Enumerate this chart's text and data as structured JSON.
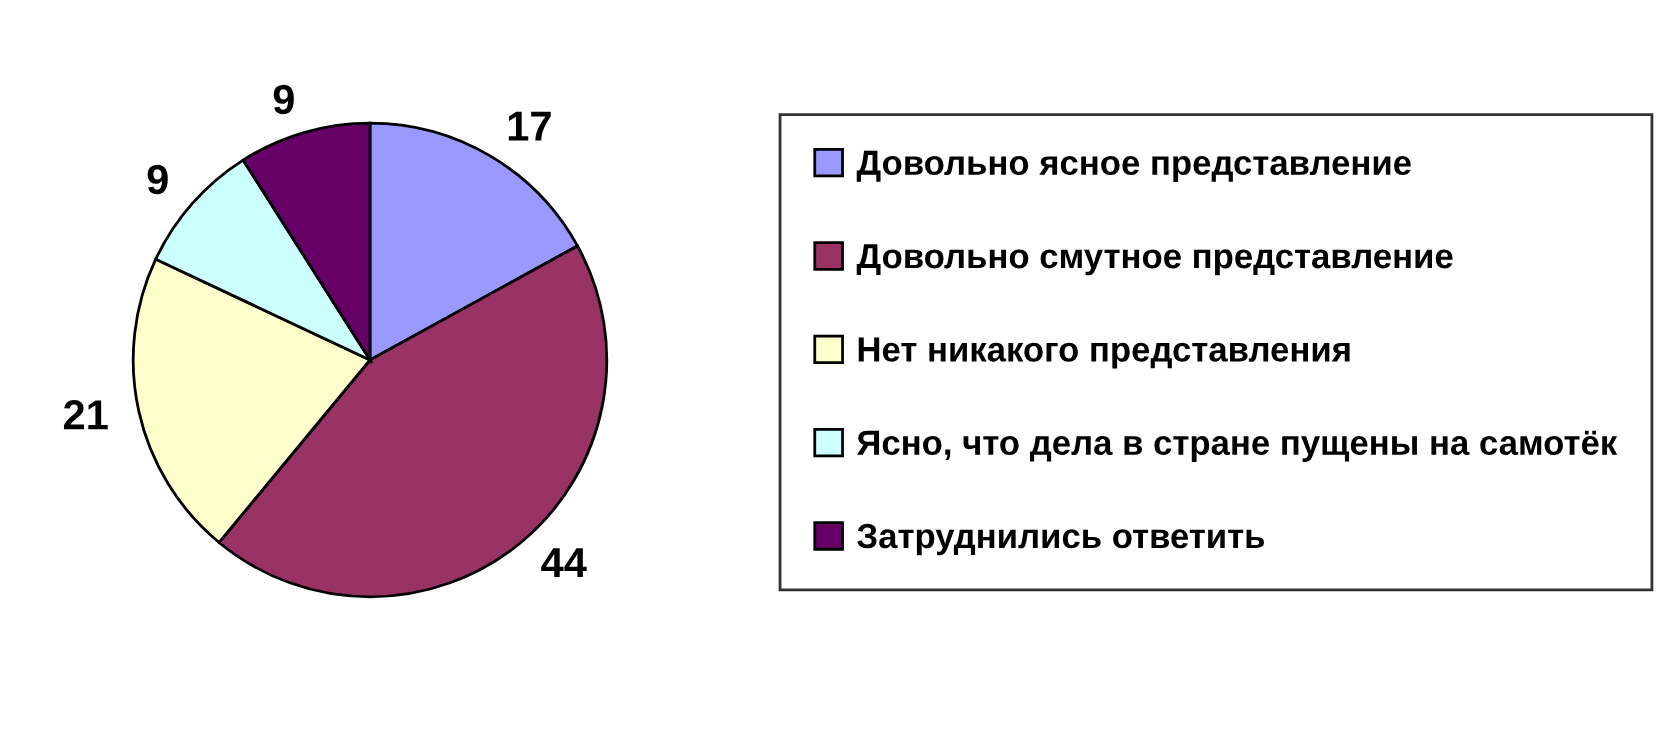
{
  "chart_data": {
    "type": "pie",
    "categories": [
      "Довольно ясное представление",
      "Довольно смутное представление",
      "Нет никакого представления",
      "Ясно, что дела в стране пущены на самотёк",
      "Затруднились ответить"
    ],
    "values": [
      17,
      44,
      21,
      9,
      9
    ],
    "colors": [
      "#9999ff",
      "#993366",
      "#ffffcc",
      "#ccffff",
      "#660066"
    ],
    "data_labels": true,
    "legend": "right"
  }
}
